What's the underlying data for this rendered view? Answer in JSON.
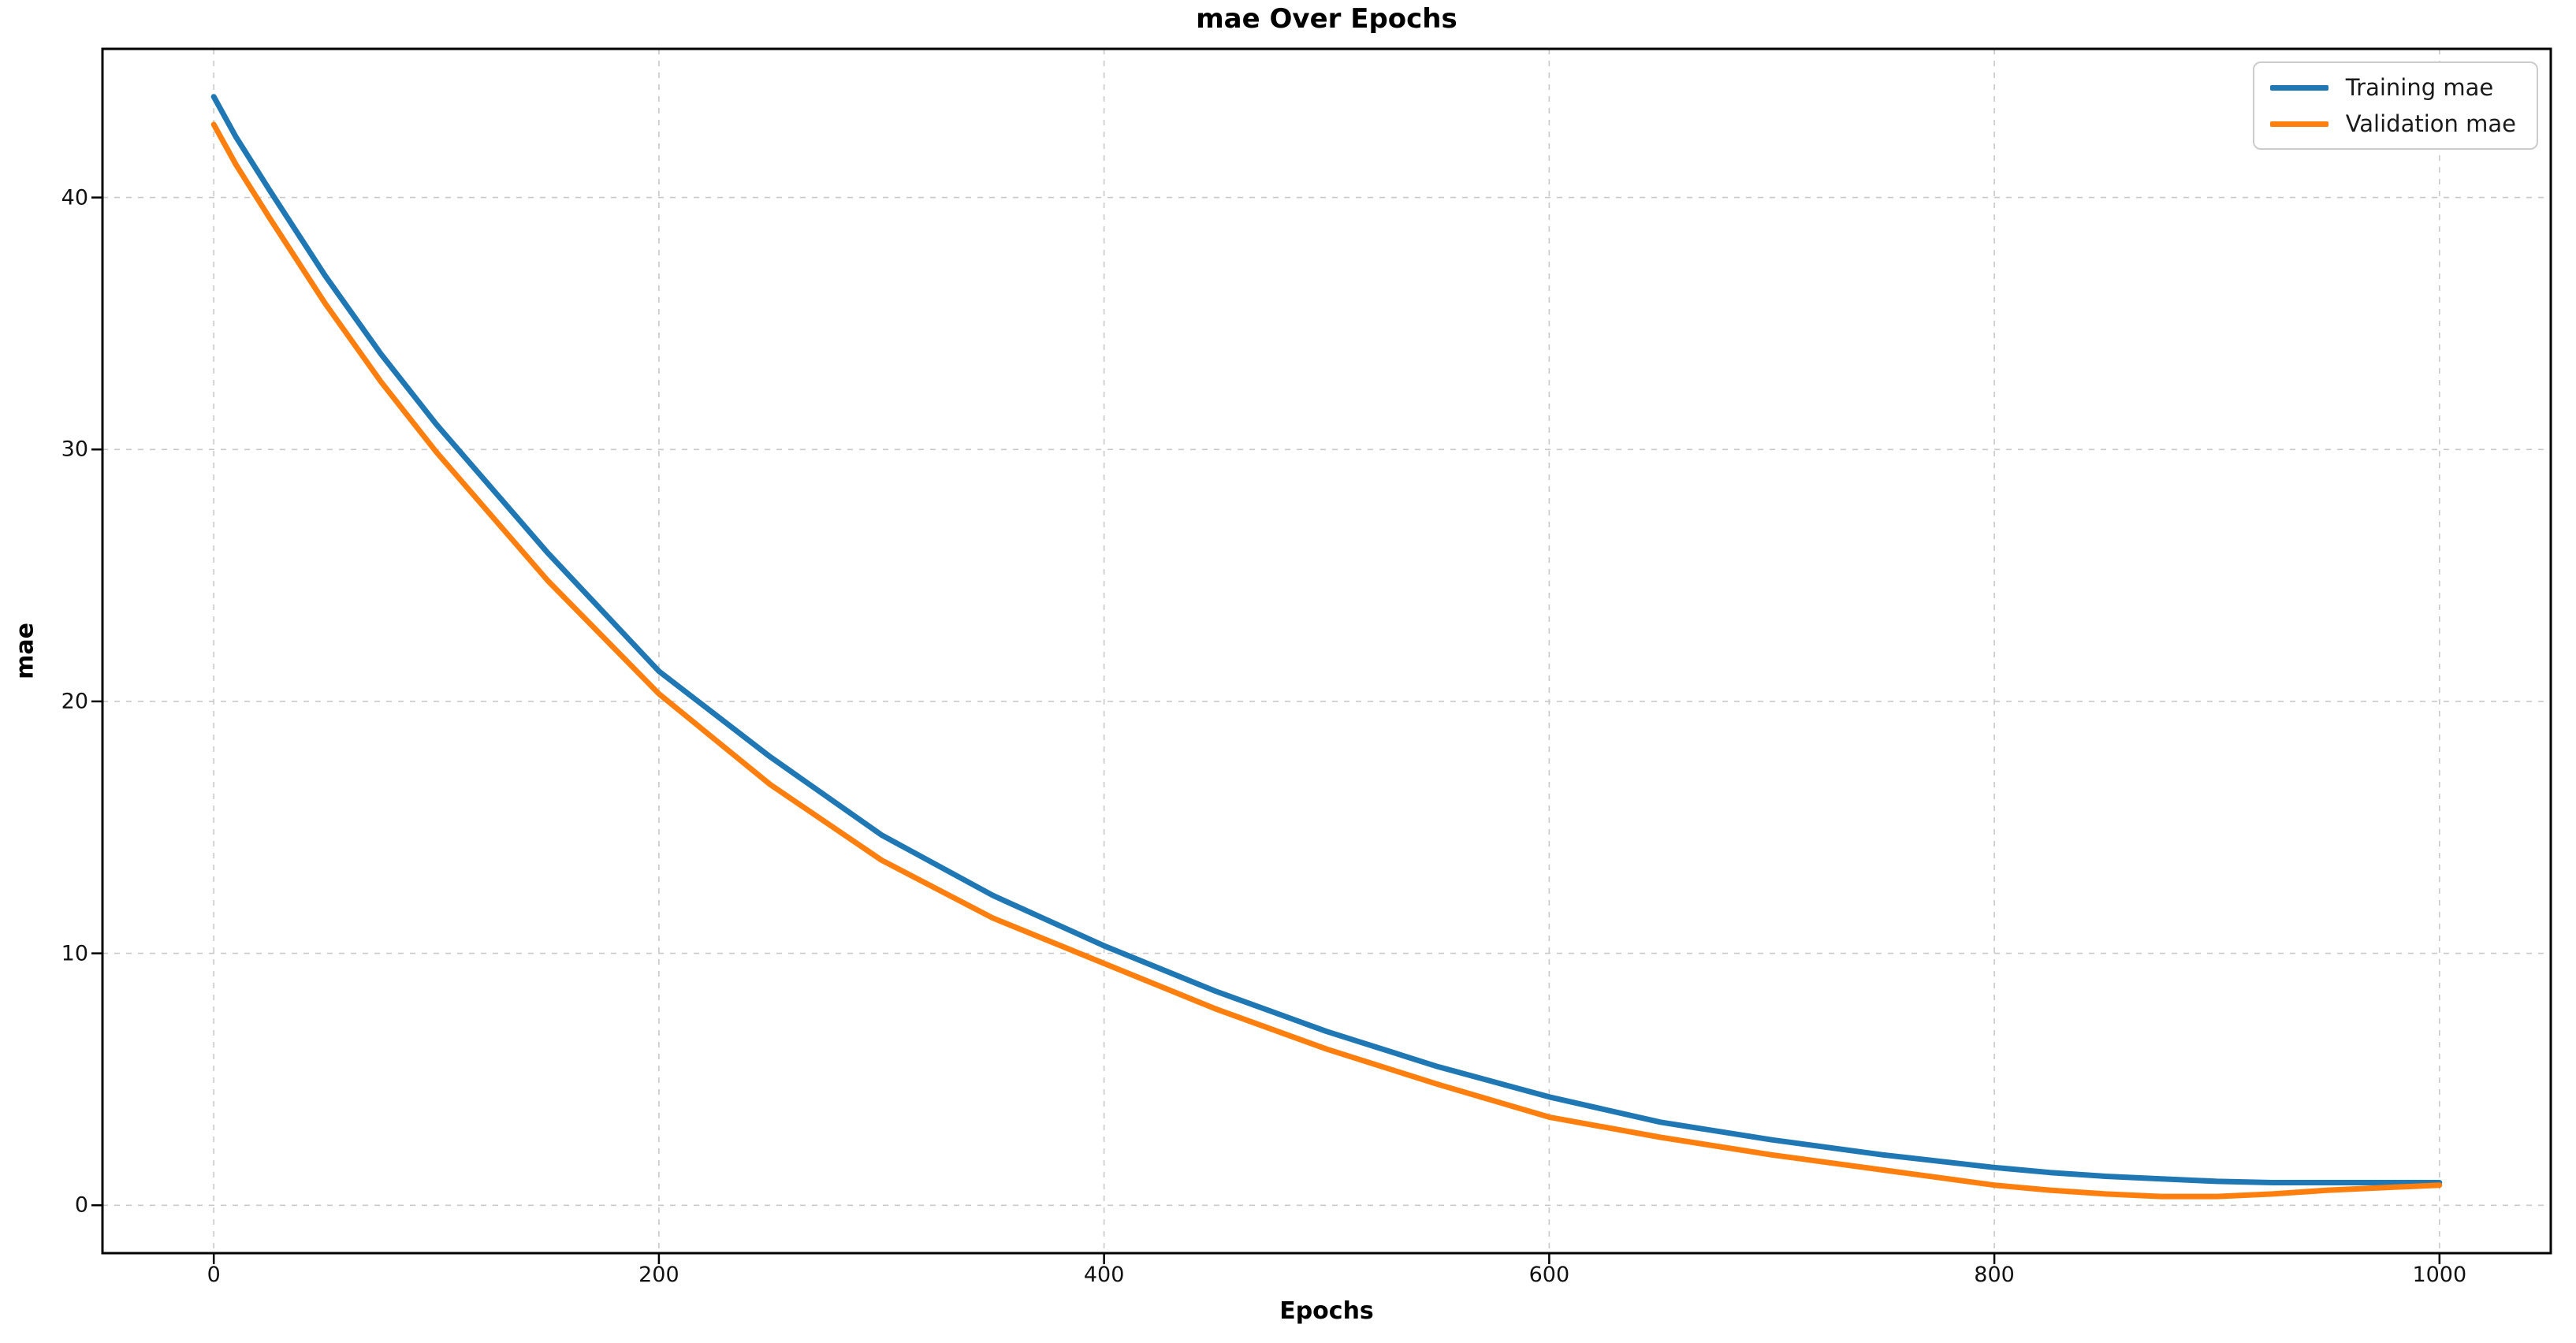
{
  "chart_data": {
    "type": "line",
    "title": "mae Over Epochs",
    "xlabel": "Epochs",
    "ylabel": "mae",
    "xlim": [
      -50,
      1050
    ],
    "ylim": [
      -1.9,
      45.9
    ],
    "x_ticks": [
      0,
      200,
      400,
      600,
      800,
      1000
    ],
    "y_ticks": [
      0,
      10,
      20,
      30,
      40
    ],
    "grid": true,
    "grid_style": "dashed",
    "background": "#ffffff",
    "legend_position": "upper right",
    "x": [
      0,
      10,
      25,
      50,
      75,
      100,
      150,
      200,
      250,
      300,
      350,
      400,
      450,
      500,
      550,
      600,
      650,
      700,
      750,
      800,
      825,
      850,
      875,
      900,
      925,
      950,
      975,
      1000
    ],
    "series": [
      {
        "name": "Training mae",
        "color": "#1f77b4",
        "values": [
          44.0,
          42.4,
          40.3,
          36.9,
          33.8,
          31.0,
          25.9,
          21.2,
          17.8,
          14.7,
          12.3,
          10.3,
          8.5,
          6.9,
          5.5,
          4.3,
          3.3,
          2.6,
          2.0,
          1.5,
          1.3,
          1.15,
          1.05,
          0.95,
          0.9,
          0.9,
          0.9,
          0.9
        ]
      },
      {
        "name": "Validation mae",
        "color": "#ff7f0e",
        "values": [
          42.9,
          41.3,
          39.2,
          35.8,
          32.7,
          29.9,
          24.8,
          20.3,
          16.7,
          13.7,
          11.4,
          9.6,
          7.8,
          6.2,
          4.8,
          3.5,
          2.7,
          2.0,
          1.4,
          0.8,
          0.6,
          0.45,
          0.35,
          0.35,
          0.45,
          0.6,
          0.7,
          0.8
        ]
      }
    ]
  }
}
